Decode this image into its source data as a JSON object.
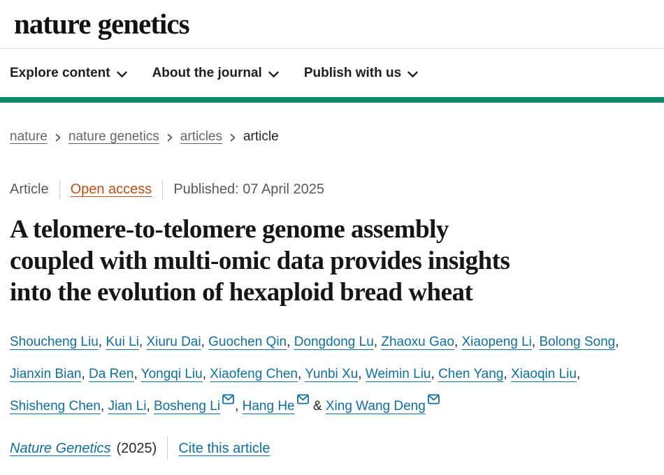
{
  "header": {
    "logo": "nature genetics",
    "nav": [
      {
        "label": "Explore content"
      },
      {
        "label": "About the journal"
      },
      {
        "label": "Publish with us"
      }
    ]
  },
  "breadcrumb": {
    "items": [
      {
        "label": "nature"
      },
      {
        "label": "nature genetics"
      },
      {
        "label": "articles"
      },
      {
        "label": "article"
      }
    ]
  },
  "meta": {
    "type": "Article",
    "access": "Open access",
    "published": "Published: 07 April 2025"
  },
  "title": {
    "full": "A telomere-to-telomere genome assembly coupled with multi-omic data provides insights into the evolution of hexaploid bread wheat",
    "lines": [
      "A telomere-to-telomere genome assembly",
      "coupled with multi-omic data provides insights",
      "into the evolution of hexaploid bread wheat"
    ]
  },
  "authors": {
    "list": [
      {
        "name": "Shoucheng Liu"
      },
      {
        "name": "Kui Li"
      },
      {
        "name": "Xiuru Dai"
      },
      {
        "name": "Guochen Qin"
      },
      {
        "name": "Dongdong Lu"
      },
      {
        "name": "Zhaoxu Gao"
      },
      {
        "name": "Xiaopeng Li"
      },
      {
        "name": "Bolong Song"
      },
      {
        "name": "Jianxin Bian"
      },
      {
        "name": "Da Ren"
      },
      {
        "name": "Yongqi Liu"
      },
      {
        "name": "Xiaofeng Chen"
      },
      {
        "name": "Yunbi Xu"
      },
      {
        "name": "Weimin Liu"
      },
      {
        "name": "Chen Yang"
      },
      {
        "name": "Xiaoqin Liu"
      },
      {
        "name": "Shisheng Chen"
      },
      {
        "name": "Jian Li"
      },
      {
        "name": "Bosheng Li",
        "email": true
      },
      {
        "name": "Hang He",
        "email": true
      },
      {
        "name": "Xing Wang Deng",
        "email": true
      }
    ]
  },
  "citation": {
    "journal": "Nature Genetics",
    "year": "(2025)",
    "cite_label": "Cite this article"
  },
  "icons": {
    "nav_dropdown": "chevron-down-icon",
    "breadcrumb_separator": "chevron-right-icon",
    "author_email": "email-icon"
  },
  "colors": {
    "accent_green": "#0e8a66",
    "link_blue": "#0e6fa3",
    "open_access_orange": "#c14e12",
    "muted_gray": "#595959"
  }
}
